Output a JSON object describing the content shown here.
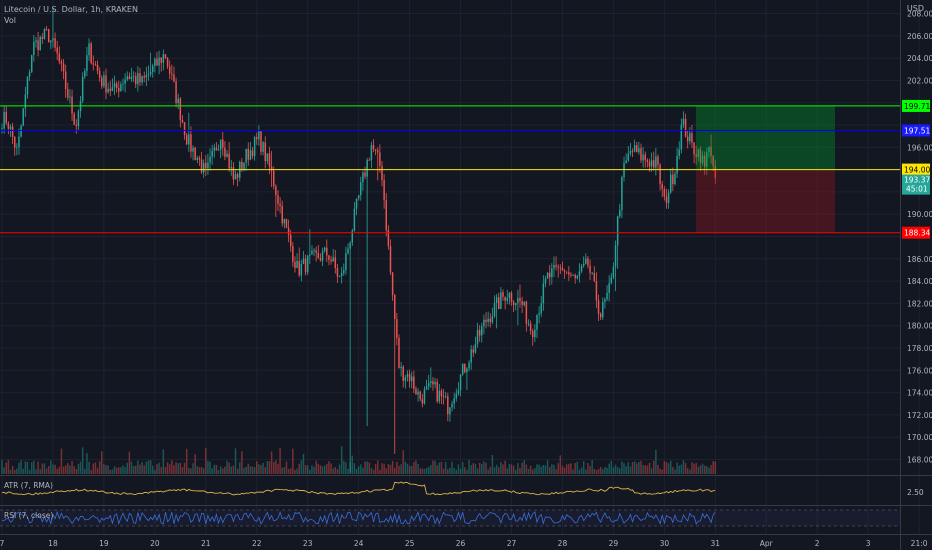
{
  "header": {
    "symbol": "Litecoin / U.S. Dollar, 1h, KRAKEN",
    "vol_label": "Vol",
    "currency": "USD"
  },
  "indicators": {
    "atr_label": "ATR (7, RMA)",
    "atr_value": "2.50",
    "rsi_label": "RSI (7, close)"
  },
  "colors": {
    "bg": "#131722",
    "up": "#26a69a",
    "down": "#ef5350",
    "grid": "#1e2230",
    "text": "#b2b5be",
    "green": "#00ff00",
    "blue": "#0000ff",
    "yellow": "#ffe600",
    "red": "#ff0000",
    "atr": "#e0b34a",
    "rsi": "#3b6fd6"
  },
  "chart_data": {
    "type": "candlestick",
    "title": "Litecoin / U.S. Dollar, 1h, KRAKEN",
    "x_ticks": [
      "7",
      "18",
      "19",
      "20",
      "21",
      "22",
      "23",
      "24",
      "25",
      "26",
      "27",
      "28",
      "29",
      "30",
      "31",
      "Apr",
      "2",
      "3",
      "21:0"
    ],
    "y_ticks": [
      168,
      170,
      172,
      174,
      176,
      178,
      180,
      182,
      184,
      186,
      188,
      190,
      192,
      194,
      196,
      198,
      200,
      202,
      204,
      206,
      208
    ],
    "ylim": [
      166.5,
      209.8
    ],
    "anchors": [
      {
        "d": 17.1,
        "p": 198.5
      },
      {
        "d": 17.3,
        "p": 195.5
      },
      {
        "d": 17.6,
        "p": 205.0
      },
      {
        "d": 17.9,
        "p": 206.2
      },
      {
        "d": 18.1,
        "p": 204.0
      },
      {
        "d": 18.45,
        "p": 198.0
      },
      {
        "d": 18.7,
        "p": 204.8
      },
      {
        "d": 18.95,
        "p": 202.0
      },
      {
        "d": 19.2,
        "p": 201.0
      },
      {
        "d": 19.45,
        "p": 202.5
      },
      {
        "d": 19.75,
        "p": 201.8
      },
      {
        "d": 20.2,
        "p": 204.4
      },
      {
        "d": 20.45,
        "p": 200.0
      },
      {
        "d": 20.65,
        "p": 196.5
      },
      {
        "d": 20.85,
        "p": 195.0
      },
      {
        "d": 21.0,
        "p": 193.5
      },
      {
        "d": 21.3,
        "p": 197.2
      },
      {
        "d": 21.55,
        "p": 193.0
      },
      {
        "d": 21.8,
        "p": 195.3
      },
      {
        "d": 22.05,
        "p": 196.8
      },
      {
        "d": 22.3,
        "p": 193.5
      },
      {
        "d": 22.55,
        "p": 189.0
      },
      {
        "d": 22.8,
        "p": 185.0
      },
      {
        "d": 23.1,
        "p": 186.0
      },
      {
        "d": 23.4,
        "p": 186.5
      },
      {
        "d": 23.65,
        "p": 184.0
      },
      {
        "d": 24.0,
        "p": 191.5
      },
      {
        "d": 24.25,
        "p": 196.2
      },
      {
        "d": 24.45,
        "p": 194.0
      },
      {
        "d": 24.6,
        "p": 186.0
      },
      {
        "d": 24.8,
        "p": 176.0
      },
      {
        "d": 25.0,
        "p": 175.5
      },
      {
        "d": 25.2,
        "p": 173.5
      },
      {
        "d": 25.45,
        "p": 174.5
      },
      {
        "d": 25.75,
        "p": 172.8
      },
      {
        "d": 26.1,
        "p": 176.5
      },
      {
        "d": 26.5,
        "p": 180.5
      },
      {
        "d": 26.9,
        "p": 183.0
      },
      {
        "d": 27.2,
        "p": 182.0
      },
      {
        "d": 27.4,
        "p": 179.5
      },
      {
        "d": 27.7,
        "p": 184.3
      },
      {
        "d": 28.0,
        "p": 185.2
      },
      {
        "d": 28.25,
        "p": 184.0
      },
      {
        "d": 28.5,
        "p": 185.5
      },
      {
        "d": 28.75,
        "p": 181.0
      },
      {
        "d": 28.95,
        "p": 183.5
      },
      {
        "d": 29.05,
        "p": 188.0
      },
      {
        "d": 29.2,
        "p": 194.0
      },
      {
        "d": 29.35,
        "p": 195.8
      },
      {
        "d": 29.6,
        "p": 195.0
      },
      {
        "d": 29.85,
        "p": 194.5
      },
      {
        "d": 30.0,
        "p": 191.0
      },
      {
        "d": 30.2,
        "p": 194.0
      },
      {
        "d": 30.35,
        "p": 198.2
      },
      {
        "d": 30.55,
        "p": 196.0
      },
      {
        "d": 30.7,
        "p": 195.5
      },
      {
        "d": 30.8,
        "p": 194.0
      },
      {
        "d": 30.88,
        "p": 196.8
      },
      {
        "d": 31.0,
        "p": 192.5
      }
    ],
    "levels": [
      {
        "name": "take-profit",
        "value": 199.71,
        "label": "199.71",
        "color": "#00ff00"
      },
      {
        "name": "blue-level",
        "value": 197.51,
        "label": "197.51",
        "color": "#0000ff"
      },
      {
        "name": "entry",
        "value": 194.0,
        "label": "194.00",
        "color": "#ffe600"
      },
      {
        "name": "stop-loss",
        "value": 188.34,
        "label": "188.34",
        "color": "#ff0000"
      }
    ],
    "last_price": {
      "value": 193.37,
      "label": "193.37",
      "countdown": "45:01"
    },
    "position": {
      "entry": 194.0,
      "target": 199.71,
      "stop": 188.34,
      "start_day": 30.62,
      "end_day": 33.35
    }
  }
}
